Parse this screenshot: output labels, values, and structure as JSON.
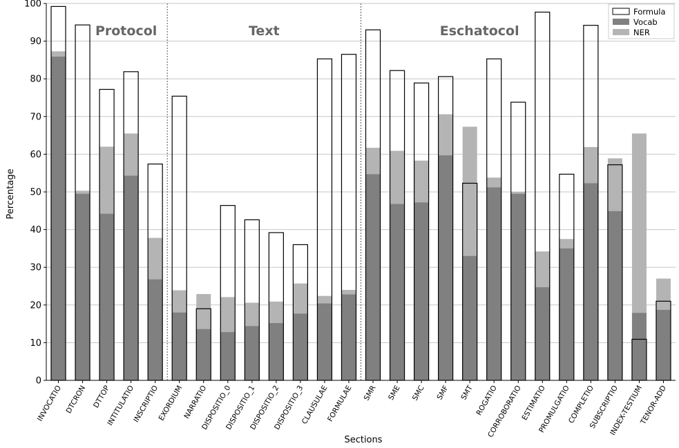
{
  "chart_data": {
    "type": "bar",
    "xlabel": "Sections",
    "ylabel": "Percentage",
    "ylim": [
      0,
      100
    ],
    "yticks": [
      0,
      10,
      20,
      30,
      40,
      50,
      60,
      70,
      80,
      90,
      100
    ],
    "grid": "horizontal",
    "legend_position": "top-right",
    "categories": [
      "INVOCATIO",
      "DTCRON",
      "DTTOP",
      "INTITULATIO",
      "INSCRIPTIO",
      "EXORDIUM",
      "NARRATIO",
      "DISPOSITIO_0",
      "DISPOSITIO_1",
      "DISPOSITIO_2",
      "DISPOSITIO_3",
      "CLAUSULAE",
      "FORMULAE",
      "SMR",
      "SME",
      "SMC",
      "SMF",
      "SMT",
      "ROGATIO",
      "CORROBORATIO",
      "ESTIMATIO",
      "PROMULGATIO",
      "COMPLETIO",
      "SUBSCRIPTIO",
      "INDEX-TESTIUM",
      "TENOR-ADD"
    ],
    "series": [
      {
        "name": "Formula",
        "style": "outline",
        "color": "#000000",
        "values": [
          99.2,
          94.3,
          77.2,
          81.9,
          57.4,
          75.4,
          19.0,
          46.4,
          42.6,
          39.2,
          36.0,
          85.3,
          86.5,
          93.0,
          82.2,
          78.9,
          80.6,
          52.3,
          85.3,
          73.8,
          97.7,
          54.7,
          94.2,
          57.2,
          10.9,
          21.0
        ]
      },
      {
        "name": "Vocab",
        "color": "#808080",
        "values": [
          85.9,
          49.5,
          44.2,
          54.3,
          26.8,
          18.0,
          13.6,
          12.8,
          14.4,
          15.2,
          17.7,
          20.4,
          22.8,
          54.7,
          46.8,
          47.2,
          59.7,
          33.0,
          51.2,
          49.5,
          24.7,
          35.0,
          52.3,
          44.9,
          17.9,
          18.7
        ]
      },
      {
        "name": "NER",
        "color": "#b4b4b4",
        "values": [
          87.3,
          50.3,
          62.0,
          65.5,
          37.8,
          23.9,
          22.9,
          22.1,
          20.6,
          20.9,
          25.7,
          22.4,
          24.0,
          61.7,
          60.9,
          58.3,
          70.6,
          67.3,
          53.8,
          50.0,
          34.2,
          37.5,
          61.9,
          58.9,
          65.5,
          27.0
        ]
      }
    ],
    "groups": [
      {
        "name": "Protocol",
        "start": 0,
        "end": 4
      },
      {
        "name": "Text",
        "start": 5,
        "end": 12
      },
      {
        "name": "Eschatocol",
        "start": 13,
        "end": 25
      }
    ]
  }
}
